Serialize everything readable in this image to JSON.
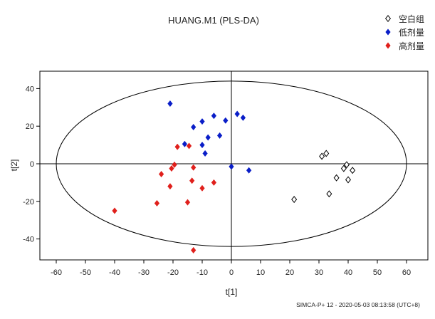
{
  "chart_data": {
    "type": "scatter",
    "title": "HUANG.M1 (PLS-DA)",
    "xlabel": "t[1]",
    "ylabel": "t[2]",
    "xlim": [
      -65,
      65
    ],
    "ylim": [
      -50,
      47
    ],
    "xticks": [
      -60,
      -50,
      -40,
      -30,
      -20,
      -10,
      0,
      10,
      20,
      30,
      40,
      50,
      60
    ],
    "yticks": [
      -40,
      -20,
      0,
      20,
      40
    ],
    "grid": false,
    "legend_position": "top-right",
    "footer": "SIMCA-P+ 12 - 2020-05-03 08:13:58 (UTC+8)",
    "ellipse": {
      "cx": 0,
      "cy": 0,
      "rx": 60,
      "ry": 44
    },
    "series": [
      {
        "name": "空白组",
        "marker": "diamond-open",
        "color": "#000000",
        "points": [
          [
            21.5,
            -19
          ],
          [
            31,
            4
          ],
          [
            32.5,
            5.5
          ],
          [
            33.5,
            -16
          ],
          [
            36,
            -7.5
          ],
          [
            38.5,
            -2.5
          ],
          [
            39.5,
            -0.5
          ],
          [
            40,
            -8.5
          ],
          [
            41.5,
            -3.5
          ]
        ]
      },
      {
        "name": "低剂量",
        "marker": "diamond",
        "color": "#0a1ec8",
        "points": [
          [
            -21,
            32
          ],
          [
            -16,
            10.5
          ],
          [
            -13,
            19.5
          ],
          [
            -10,
            10
          ],
          [
            -10,
            22.5
          ],
          [
            -9,
            5.5
          ],
          [
            -8,
            14
          ],
          [
            -6,
            25.5
          ],
          [
            -4,
            15
          ],
          [
            -2,
            23
          ],
          [
            0,
            -1.5
          ],
          [
            2,
            26.5
          ],
          [
            4,
            24.5
          ],
          [
            6,
            -3.5
          ]
        ]
      },
      {
        "name": "高剂量",
        "marker": "diamond",
        "color": "#e0201c",
        "points": [
          [
            -40,
            -25
          ],
          [
            -25.5,
            -21
          ],
          [
            -24,
            -5.5
          ],
          [
            -21,
            -12
          ],
          [
            -20.5,
            -2.5
          ],
          [
            -19.5,
            -0.5
          ],
          [
            -18.5,
            9
          ],
          [
            -15,
            -20.5
          ],
          [
            -14.5,
            9.5
          ],
          [
            -13.5,
            -9
          ],
          [
            -13,
            -46
          ],
          [
            -13,
            -2
          ],
          [
            -10,
            -13
          ],
          [
            -6,
            -10
          ]
        ]
      }
    ]
  }
}
